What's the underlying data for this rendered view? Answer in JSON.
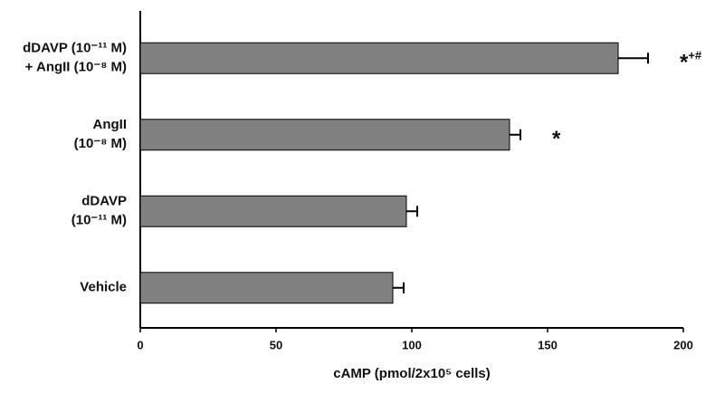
{
  "chart_data": {
    "type": "hbar",
    "categories": [
      [
        "dDAVP (10⁻¹¹ M)",
        "+ AngII (10⁻⁸ M)"
      ],
      [
        "AngII",
        "(10⁻⁸ M)"
      ],
      [
        "dDAVP",
        "(10⁻¹¹ M)"
      ],
      [
        "Vehicle"
      ]
    ],
    "values": [
      176,
      136,
      98,
      93
    ],
    "errors": [
      11,
      4,
      4,
      4
    ],
    "color": "#808080",
    "annotations": [
      {
        "mark": "*",
        "sup": "+#"
      },
      {
        "mark": "*"
      },
      null,
      null
    ],
    "x_label": "cAMP (pmol/2x10⁵ cells)",
    "xlim": [
      0,
      200
    ],
    "xticks": [
      0,
      50,
      100,
      150,
      200
    ]
  }
}
